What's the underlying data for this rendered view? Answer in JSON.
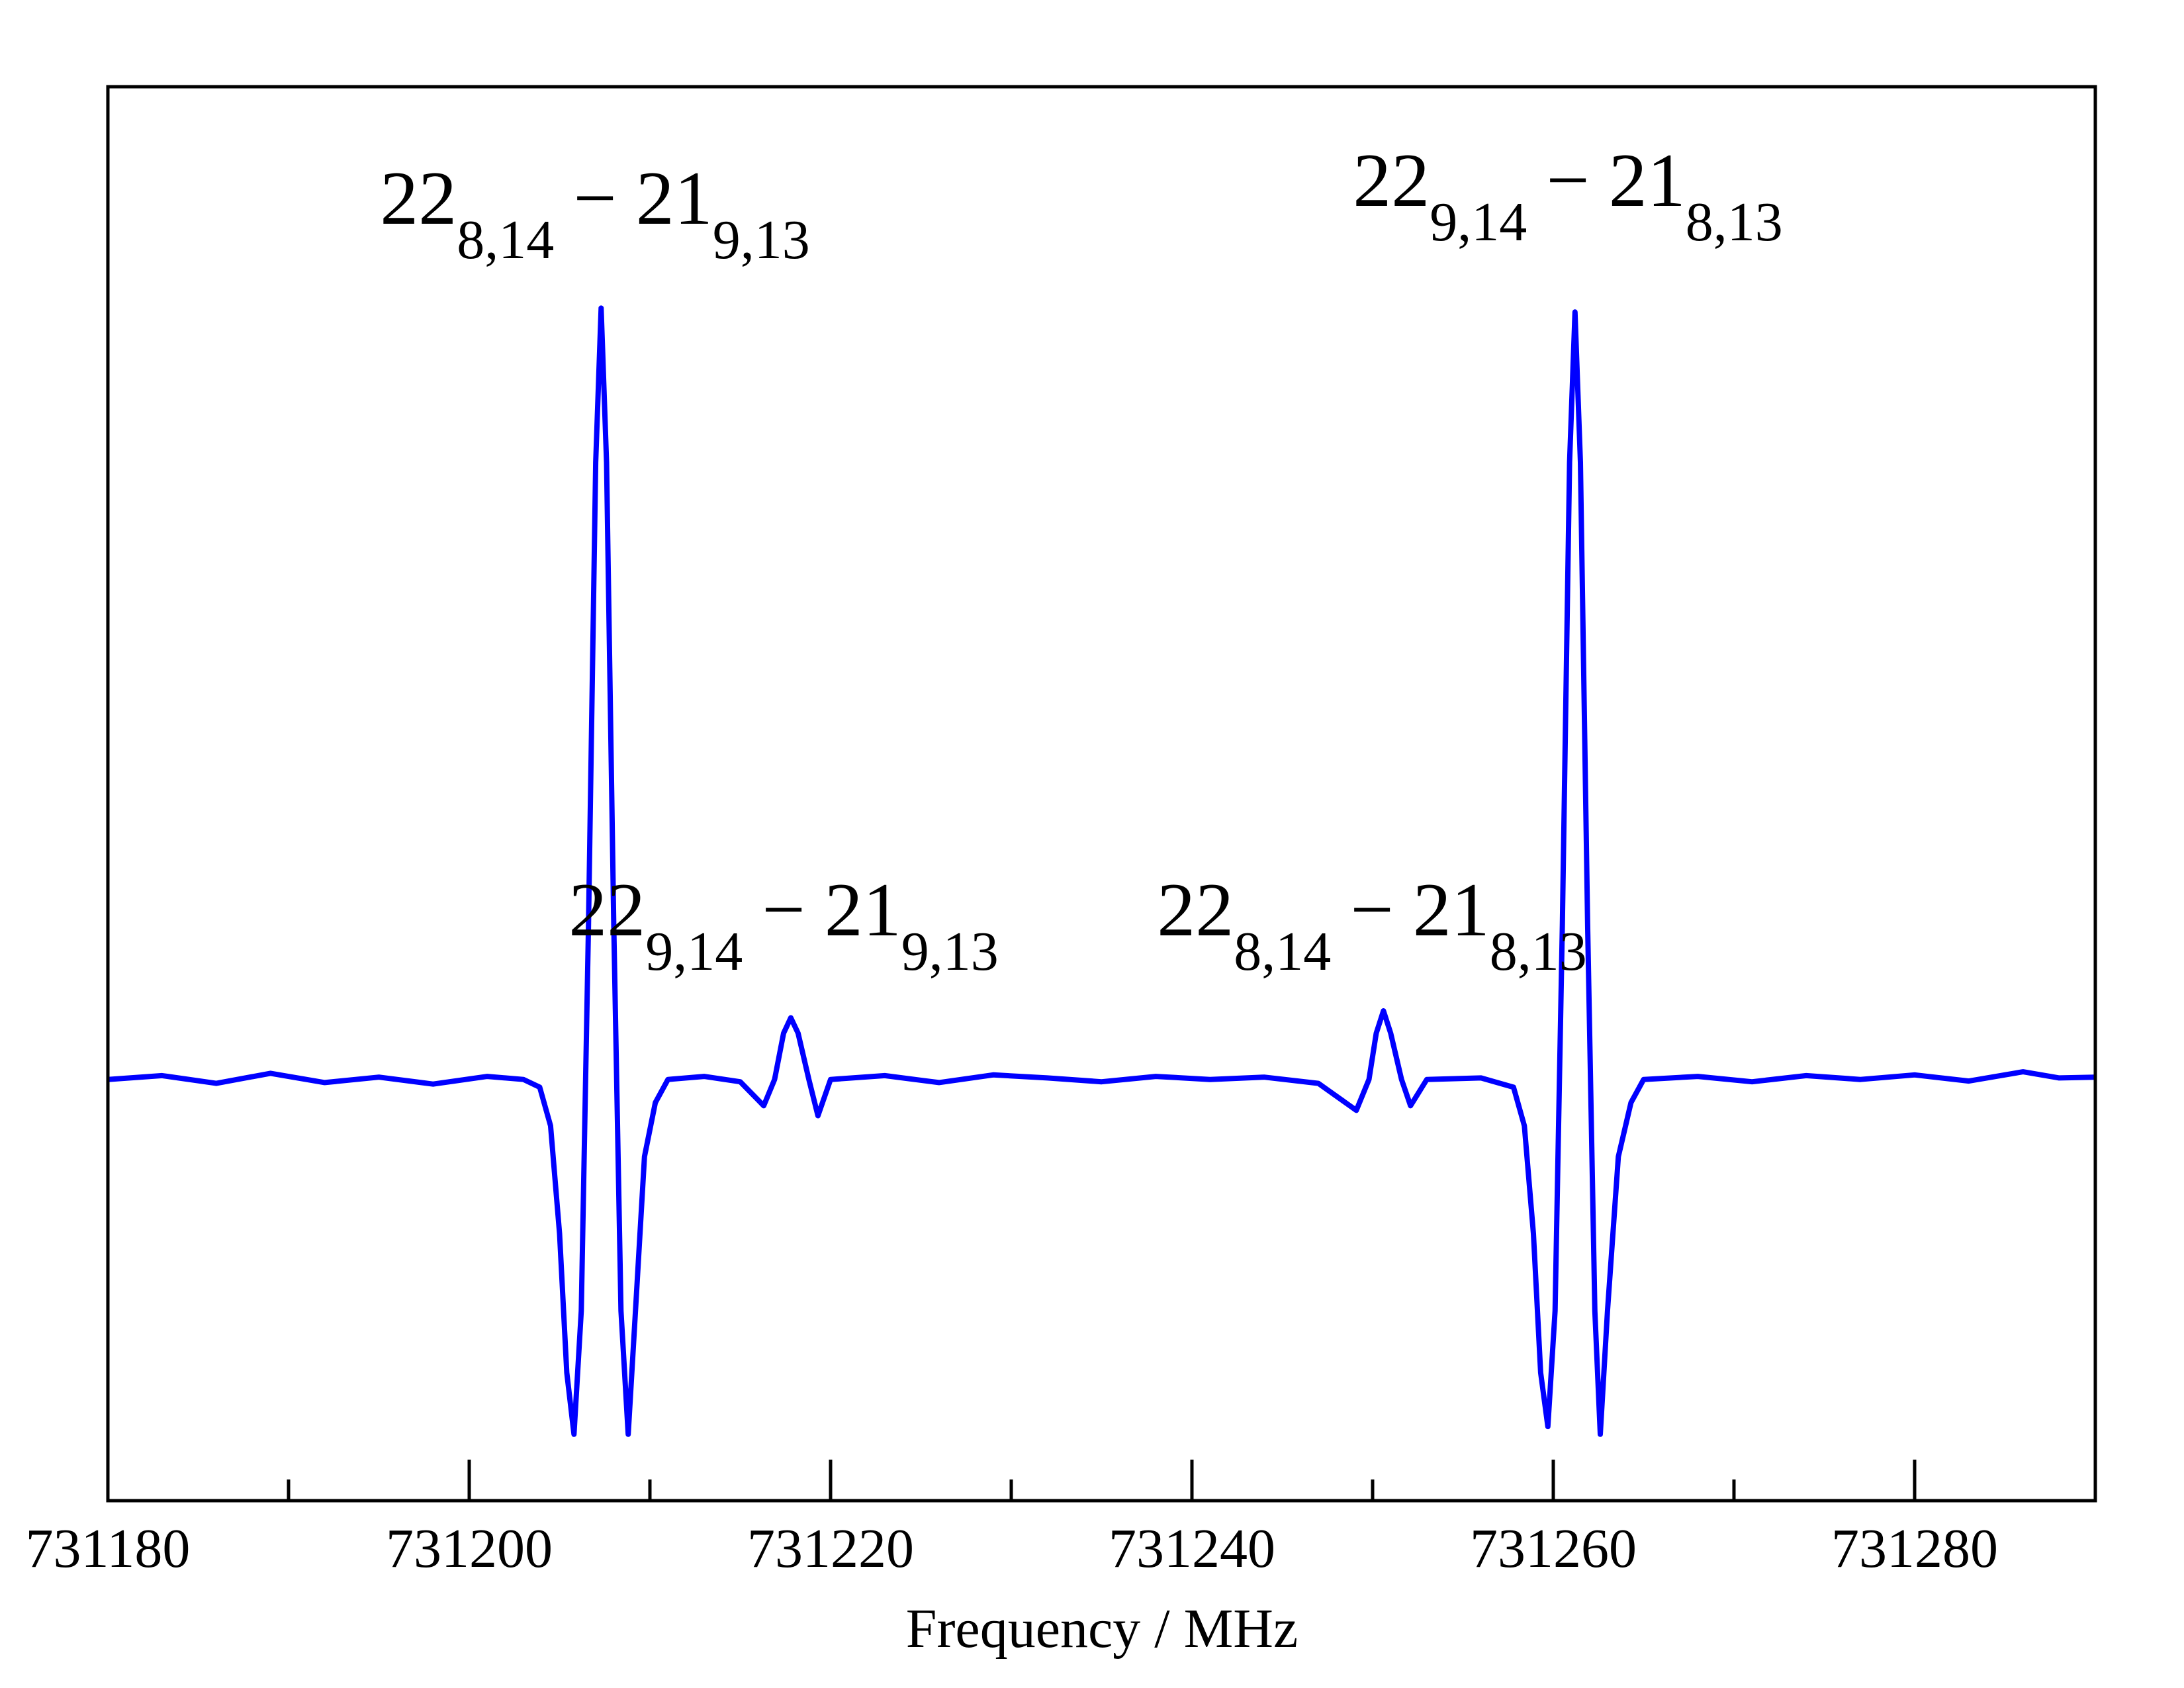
{
  "chart_data": {
    "type": "line",
    "xlabel": "Frequency / MHz",
    "xlim": [
      731180,
      731290
    ],
    "ylim": [
      -0.546,
      1.287
    ],
    "xticks": [
      731180,
      731200,
      731220,
      731240,
      731260,
      731280
    ],
    "xminor": [
      731190,
      731210,
      731230,
      731250,
      731270
    ],
    "annotations": [
      {
        "x": 731207.3,
        "parts": [
          {
            "text": "22"
          },
          {
            "text": "8,14",
            "sub": true
          },
          {
            "text": " − "
          },
          {
            "text": "21"
          },
          {
            "text": "9,13",
            "sub": true
          }
        ]
      },
      {
        "x": 731261.2,
        "parts": [
          {
            "text": "22"
          },
          {
            "text": "9,14",
            "sub": true
          },
          {
            "text": " − "
          },
          {
            "text": "21"
          },
          {
            "text": "8,13",
            "sub": true
          }
        ]
      },
      {
        "x": 731217.8,
        "parts": [
          {
            "text": "22"
          },
          {
            "text": "9,14",
            "sub": true
          },
          {
            "text": " − "
          },
          {
            "text": "21"
          },
          {
            "text": "9,13",
            "sub": true
          }
        ]
      },
      {
        "x": 731250.6,
        "parts": [
          {
            "text": "22"
          },
          {
            "text": "8,14",
            "sub": true
          },
          {
            "text": " − "
          },
          {
            "text": "21"
          },
          {
            "text": "8,13",
            "sub": true
          }
        ]
      }
    ],
    "series": [
      {
        "color": "#0000ff",
        "x": [
          731180,
          731183,
          731186,
          731189,
          731192,
          731195,
          731198,
          731201,
          731203,
          731203.9,
          731204.5,
          731205.0,
          731205.4,
          731205.8,
          731206.2,
          731206.6,
          731207.0,
          731207.3,
          731207.6,
          731208.0,
          731208.4,
          731208.8,
          731209.2,
          731209.7,
          731210.3,
          731211,
          731213,
          731215,
          731216.3,
          731216.9,
          731217.4,
          731217.8,
          731218.2,
          731218.8,
          731219.3,
          731220,
          731223,
          731226,
          731229,
          731232,
          731235,
          731238,
          731241,
          731244,
          731247,
          731249.1,
          731249.8,
          731250.2,
          731250.6,
          731251.0,
          731251.6,
          731252.1,
          731253,
          731256,
          731257.8,
          731258.4,
          731258.9,
          731259.3,
          731259.7,
          731260.1,
          731260.5,
          731260.9,
          731261.2,
          731261.5,
          731261.9,
          731262.3,
          731262.6,
          731263.0,
          731263.6,
          731264.3,
          731265,
          731268,
          731271,
          731274,
          731277,
          731280,
          731283,
          731286,
          731288,
          731290
        ],
        "values": [
          0.0,
          0.005,
          -0.005,
          0.008,
          -0.004,
          0.003,
          -0.006,
          0.004,
          0.0,
          -0.01,
          -0.06,
          -0.2,
          -0.38,
          -0.46,
          -0.3,
          0.2,
          0.8,
          1.0,
          0.8,
          0.2,
          -0.3,
          -0.46,
          -0.3,
          -0.1,
          -0.03,
          0.0,
          0.004,
          -0.003,
          -0.034,
          0.0,
          0.06,
          0.08,
          0.06,
          0.0,
          -0.047,
          0.0,
          0.005,
          -0.004,
          0.006,
          0.002,
          -0.003,
          0.004,
          0.0,
          0.003,
          -0.005,
          -0.04,
          0.0,
          0.06,
          0.089,
          0.06,
          0.0,
          -0.034,
          0.0,
          0.002,
          -0.01,
          -0.06,
          -0.2,
          -0.38,
          -0.45,
          -0.3,
          0.2,
          0.8,
          0.995,
          0.8,
          0.2,
          -0.3,
          -0.46,
          -0.3,
          -0.1,
          -0.03,
          0.0,
          0.004,
          -0.003,
          0.005,
          0.0,
          0.006,
          -0.002,
          0.01,
          0.002,
          0.003
        ]
      }
    ]
  }
}
